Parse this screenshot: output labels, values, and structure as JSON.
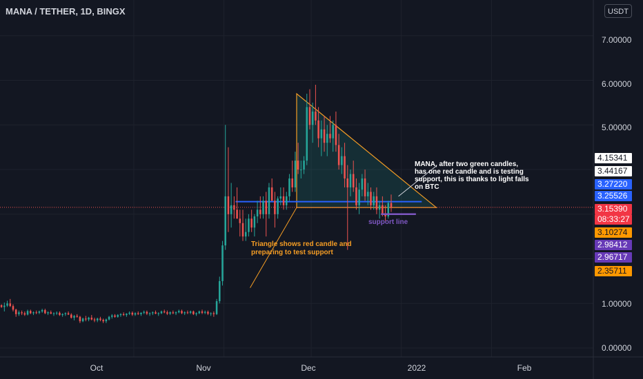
{
  "header": {
    "title": "MANA / TETHER, 1D, BINGX",
    "currency_button": "USDT"
  },
  "annotations": {
    "note_main": "MANA, after two green candles, has one red candle and is testing support, this is thanks to light falls on BTC",
    "note_triangle": "Triangle shows red candle and preparing to test support",
    "note_support": "support line"
  },
  "price_labels": [
    {
      "text": "4.15341",
      "bg": "#ffffff",
      "fg": "#131722"
    },
    {
      "text": "3.44167",
      "bg": "#ffffff",
      "fg": "#131722"
    },
    {
      "text": "3.27220",
      "bg": "#2962ff",
      "fg": "#ffffff"
    },
    {
      "text": "3.25526",
      "bg": "#2962ff",
      "fg": "#ffffff"
    },
    {
      "text": "3.15390",
      "bg": "#f23645",
      "fg": "#ffffff"
    },
    {
      "text": "08:33:27",
      "bg": "#f23645",
      "fg": "#ffffff"
    },
    {
      "text": "3.10274",
      "bg": "#ff9800",
      "fg": "#131722"
    },
    {
      "text": "2.98412",
      "bg": "#673ab7",
      "fg": "#ffffff"
    },
    {
      "text": "2.96717",
      "bg": "#673ab7",
      "fg": "#ffffff"
    },
    {
      "text": "2.35711",
      "bg": "#ff9800",
      "fg": "#131722"
    }
  ],
  "colors": {
    "background": "#131722",
    "up": "#26a69a",
    "down": "#ef5350",
    "grid": "#1e222d",
    "triangle": "#f59d24",
    "triangle_fill": "#26a69a",
    "support": "#2962ff",
    "support_short": "#7e57c2",
    "last_price_line": "#ef5350"
  },
  "chart_data": {
    "type": "candlestick",
    "title": "MANA / TETHER, 1D, BINGX",
    "yticks": [
      "7.00000",
      "6.00000",
      "5.00000",
      "1.00000",
      "0.00000"
    ],
    "xticks": [
      "Oct",
      "Nov",
      "Dec",
      "2022",
      "Feb"
    ],
    "ylim": [
      -0.2,
      7.8
    ],
    "x_range_days": [
      0,
      204
    ],
    "x_tick_days": [
      46,
      77,
      107,
      138,
      169
    ],
    "series": [
      {
        "name": "MANA/USDT",
        "ohlc": [
          [
            0.96,
            0.98,
            0.9,
            0.92
          ],
          [
            0.92,
            1.02,
            0.82,
            0.95
          ],
          [
            0.95,
            1.06,
            0.92,
            1.0
          ],
          [
            1.0,
            1.1,
            0.92,
            0.94
          ],
          [
            0.94,
            0.98,
            0.82,
            0.86
          ],
          [
            0.86,
            0.88,
            0.7,
            0.76
          ],
          [
            0.76,
            0.84,
            0.72,
            0.8
          ],
          [
            0.8,
            0.84,
            0.74,
            0.78
          ],
          [
            0.78,
            0.82,
            0.72,
            0.75
          ],
          [
            0.75,
            0.86,
            0.73,
            0.83
          ],
          [
            0.83,
            0.86,
            0.76,
            0.78
          ],
          [
            0.78,
            0.82,
            0.74,
            0.8
          ],
          [
            0.8,
            0.84,
            0.76,
            0.79
          ],
          [
            0.79,
            0.84,
            0.76,
            0.82
          ],
          [
            0.82,
            0.88,
            0.79,
            0.85
          ],
          [
            0.85,
            0.88,
            0.76,
            0.78
          ],
          [
            0.78,
            0.82,
            0.74,
            0.8
          ],
          [
            0.8,
            0.84,
            0.76,
            0.77
          ],
          [
            0.77,
            0.8,
            0.72,
            0.78
          ],
          [
            0.78,
            0.82,
            0.74,
            0.79
          ],
          [
            0.79,
            0.82,
            0.72,
            0.74
          ],
          [
            0.74,
            0.78,
            0.7,
            0.76
          ],
          [
            0.76,
            0.8,
            0.72,
            0.78
          ],
          [
            0.78,
            0.82,
            0.74,
            0.75
          ],
          [
            0.75,
            0.78,
            0.66,
            0.68
          ],
          [
            0.68,
            0.74,
            0.62,
            0.72
          ],
          [
            0.72,
            0.76,
            0.68,
            0.7
          ],
          [
            0.7,
            0.72,
            0.56,
            0.6
          ],
          [
            0.6,
            0.68,
            0.58,
            0.66
          ],
          [
            0.66,
            0.72,
            0.6,
            0.64
          ],
          [
            0.64,
            0.7,
            0.6,
            0.68
          ],
          [
            0.68,
            0.74,
            0.62,
            0.64
          ],
          [
            0.64,
            0.68,
            0.58,
            0.62
          ],
          [
            0.62,
            0.68,
            0.58,
            0.66
          ],
          [
            0.66,
            0.7,
            0.6,
            0.63
          ],
          [
            0.63,
            0.66,
            0.56,
            0.6
          ],
          [
            0.6,
            0.66,
            0.56,
            0.64
          ],
          [
            0.64,
            0.72,
            0.62,
            0.7
          ],
          [
            0.7,
            0.76,
            0.66,
            0.73
          ],
          [
            0.73,
            0.76,
            0.68,
            0.7
          ],
          [
            0.7,
            0.76,
            0.68,
            0.74
          ],
          [
            0.74,
            0.78,
            0.7,
            0.76
          ],
          [
            0.76,
            0.8,
            0.72,
            0.74
          ],
          [
            0.74,
            0.78,
            0.7,
            0.77
          ],
          [
            0.77,
            0.82,
            0.74,
            0.79
          ],
          [
            0.79,
            0.82,
            0.72,
            0.75
          ],
          [
            0.75,
            0.8,
            0.72,
            0.78
          ],
          [
            0.78,
            0.82,
            0.74,
            0.76
          ],
          [
            0.76,
            0.8,
            0.72,
            0.79
          ],
          [
            0.79,
            0.84,
            0.76,
            0.81
          ],
          [
            0.81,
            0.84,
            0.74,
            0.77
          ],
          [
            0.77,
            0.8,
            0.72,
            0.78
          ],
          [
            0.78,
            0.82,
            0.74,
            0.8
          ],
          [
            0.8,
            0.84,
            0.76,
            0.77
          ],
          [
            0.77,
            0.8,
            0.72,
            0.78
          ],
          [
            0.78,
            0.84,
            0.76,
            0.82
          ],
          [
            0.82,
            0.86,
            0.78,
            0.8
          ],
          [
            0.8,
            0.84,
            0.74,
            0.77
          ],
          [
            0.77,
            0.82,
            0.74,
            0.8
          ],
          [
            0.8,
            0.84,
            0.76,
            0.78
          ],
          [
            0.78,
            0.82,
            0.74,
            0.8
          ],
          [
            0.8,
            0.86,
            0.78,
            0.83
          ],
          [
            0.83,
            0.86,
            0.76,
            0.78
          ],
          [
            0.78,
            0.82,
            0.74,
            0.8
          ],
          [
            0.8,
            0.84,
            0.76,
            0.79
          ],
          [
            0.79,
            0.84,
            0.76,
            0.82
          ],
          [
            0.82,
            0.84,
            0.74,
            0.76
          ],
          [
            0.76,
            0.8,
            0.72,
            0.78
          ],
          [
            0.78,
            0.84,
            0.76,
            0.82
          ],
          [
            0.82,
            0.86,
            0.76,
            0.79
          ],
          [
            0.79,
            0.84,
            0.76,
            0.81
          ],
          [
            0.81,
            0.84,
            0.74,
            0.77
          ],
          [
            0.77,
            0.8,
            0.72,
            0.78
          ],
          [
            0.78,
            0.82,
            0.7,
            0.76
          ],
          [
            0.76,
            1.1,
            0.74,
            1.05
          ],
          [
            1.05,
            1.6,
            1.0,
            1.5
          ],
          [
            1.5,
            2.4,
            1.4,
            2.3
          ],
          [
            2.3,
            5.0,
            2.2,
            3.4
          ],
          [
            3.4,
            4.5,
            2.6,
            3.0
          ],
          [
            3.0,
            3.7,
            2.7,
            3.2
          ],
          [
            3.2,
            3.4,
            2.9,
            3.1
          ],
          [
            3.1,
            3.6,
            2.9,
            2.9
          ],
          [
            2.9,
            3.1,
            2.5,
            2.8
          ],
          [
            2.8,
            3.1,
            2.4,
            2.5
          ],
          [
            2.5,
            2.9,
            2.4,
            2.6
          ],
          [
            2.6,
            3.0,
            2.5,
            2.9
          ],
          [
            2.9,
            3.1,
            2.6,
            2.7
          ],
          [
            2.7,
            3.0,
            2.5,
            2.95
          ],
          [
            2.95,
            3.3,
            2.8,
            3.1
          ],
          [
            3.1,
            3.4,
            2.9,
            3.0
          ],
          [
            3.0,
            3.4,
            2.9,
            3.3
          ],
          [
            3.3,
            3.5,
            2.5,
            3.0
          ],
          [
            3.0,
            3.7,
            2.9,
            3.6
          ],
          [
            3.6,
            3.8,
            3.3,
            3.3
          ],
          [
            3.3,
            3.5,
            2.7,
            3.0
          ],
          [
            3.0,
            3.4,
            2.9,
            3.35
          ],
          [
            3.35,
            3.6,
            3.2,
            3.4
          ],
          [
            3.4,
            3.6,
            3.1,
            3.2
          ],
          [
            3.2,
            3.5,
            3.1,
            3.4
          ],
          [
            3.4,
            3.9,
            3.3,
            3.8
          ],
          [
            3.8,
            4.2,
            3.5,
            3.6
          ],
          [
            3.6,
            4.4,
            3.5,
            4.2
          ],
          [
            4.2,
            4.6,
            3.9,
            4.0
          ],
          [
            4.0,
            4.2,
            3.8,
            4.0
          ],
          [
            4.0,
            4.3,
            3.9,
            4.2
          ],
          [
            4.2,
            5.7,
            4.1,
            5.4
          ],
          [
            5.4,
            5.8,
            4.9,
            5.0
          ],
          [
            5.0,
            5.5,
            4.6,
            5.3
          ],
          [
            5.3,
            5.9,
            5.0,
            5.1
          ],
          [
            5.1,
            5.4,
            4.5,
            4.7
          ],
          [
            4.7,
            5.1,
            4.3,
            4.9
          ],
          [
            4.9,
            5.2,
            4.4,
            4.6
          ],
          [
            4.6,
            5.0,
            4.3,
            4.8
          ],
          [
            4.8,
            5.2,
            4.6,
            4.7
          ],
          [
            4.7,
            5.1,
            4.4,
            5.0
          ],
          [
            5.0,
            5.3,
            4.4,
            4.55
          ],
          [
            4.55,
            4.8,
            4.0,
            4.1
          ],
          [
            4.1,
            4.5,
            3.9,
            4.3
          ],
          [
            4.3,
            4.6,
            3.6,
            3.8
          ],
          [
            3.8,
            4.1,
            2.2,
            3.6
          ],
          [
            3.6,
            4.0,
            3.4,
            3.9
          ],
          [
            3.9,
            4.2,
            3.5,
            3.6
          ],
          [
            3.6,
            3.8,
            3.1,
            3.2
          ],
          [
            3.2,
            3.7,
            3.0,
            3.55
          ],
          [
            3.55,
            3.9,
            3.4,
            3.8
          ],
          [
            3.8,
            4.0,
            3.3,
            3.4
          ],
          [
            3.4,
            3.7,
            3.2,
            3.5
          ],
          [
            3.5,
            3.6,
            3.1,
            3.2
          ],
          [
            3.2,
            3.5,
            3.1,
            3.4
          ],
          [
            3.4,
            3.6,
            3.0,
            3.1
          ],
          [
            3.1,
            3.3,
            2.9,
            3.2
          ],
          [
            3.2,
            3.4,
            2.95,
            3.0
          ],
          [
            3.0,
            3.2,
            2.85,
            2.95
          ],
          [
            2.95,
            3.3,
            2.9,
            3.25
          ],
          [
            3.25,
            3.44,
            3.05,
            3.15
          ]
        ]
      }
    ],
    "annotations": {
      "triangle_points": [
        [
          102,
          5.7
        ],
        [
          102,
          3.15
        ],
        [
          150,
          3.15
        ]
      ],
      "support_line": {
        "from": [
          81,
          3.28
        ],
        "to": [
          145,
          3.28
        ]
      },
      "short_support_line": {
        "from": [
          131,
          3.0
        ],
        "to": [
          143,
          3.0
        ]
      },
      "last_price": 3.1539,
      "callout_line": {
        "from": [
          137,
          3.4
        ],
        "to": [
          150,
          4.08
        ]
      }
    }
  }
}
